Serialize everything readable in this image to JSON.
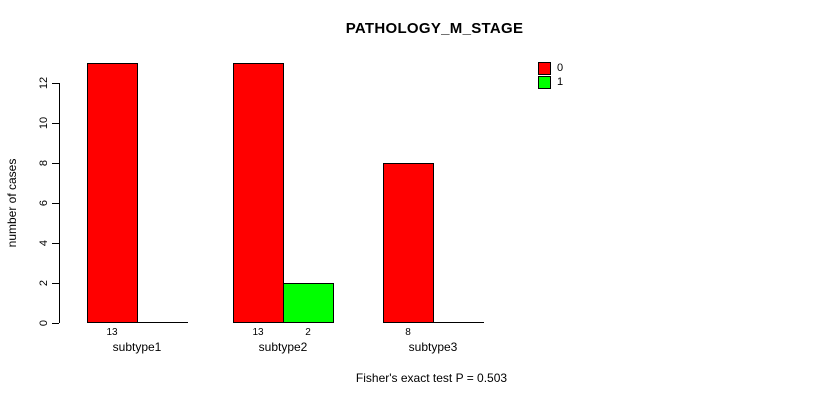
{
  "chart_data": {
    "type": "bar",
    "title": "PATHOLOGY_M_STAGE",
    "ylabel": "number of cases",
    "xlabel": "",
    "caption": "Fisher's exact test P = 0.503",
    "categories": [
      "subtype1",
      "subtype2",
      "subtype3"
    ],
    "series": [
      {
        "name": "0",
        "color": "#FF0000",
        "values": [
          13,
          13,
          8
        ]
      },
      {
        "name": "1",
        "color": "#00FF00",
        "values": [
          0,
          2,
          0
        ]
      }
    ],
    "yticks": [
      0,
      2,
      4,
      6,
      8,
      10,
      12
    ],
    "ylim": [
      0,
      13
    ],
    "grid": false,
    "legend": {
      "position": "top-right",
      "entries": [
        {
          "label": "0",
          "color": "#FF0000"
        },
        {
          "label": "1",
          "color": "#00FF00"
        }
      ]
    }
  }
}
